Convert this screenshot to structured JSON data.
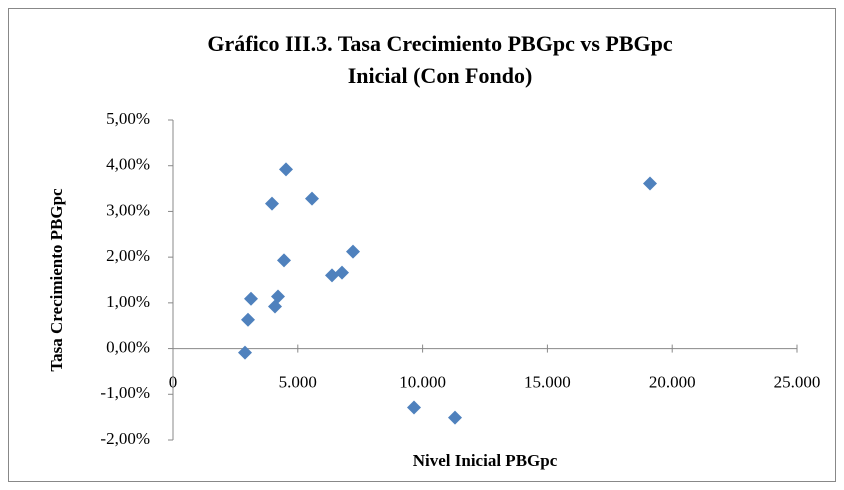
{
  "chart_data": {
    "type": "scatter",
    "title": "Gráfico III.3. Tasa Crecimiento PBGpc vs PBGpc",
    "subtitle": "Inicial (Con Fondo)",
    "x_label": "Nivel Inicial PBGpc",
    "y_label": "Tasa Crecimiento PBGpc",
    "color": "#4f81bd",
    "x": [
      2885,
      3005,
      3125,
      3966,
      4087,
      4207,
      4447,
      4527,
      5569,
      6370,
      6771,
      7212,
      9655,
      11298,
      19111
    ],
    "values": [
      -0.09,
      0.63,
      1.09,
      3.17,
      0.92,
      1.14,
      1.93,
      3.92,
      3.28,
      1.6,
      1.66,
      2.12,
      -1.29,
      -1.51,
      3.61
    ],
    "xlim": [
      0,
      25000
    ],
    "xticks": [
      0,
      {
        "value": 5000,
        "label": "5.000"
      },
      {
        "value": 10000,
        "label": "10.000"
      },
      {
        "value": 15000,
        "label": "15.000"
      },
      {
        "value": 20000,
        "label": "20.000"
      },
      {
        "value": 25000,
        "label": "25.000"
      }
    ],
    "ylim": [
      -2,
      5
    ],
    "yticks": [
      {
        "value": -2,
        "label": "-2,00%"
      },
      {
        "value": -1,
        "label": "-1,00%"
      },
      {
        "value": 0,
        "label": "0,00%"
      },
      {
        "value": 1,
        "label": "1,00%"
      },
      {
        "value": 2,
        "label": "2,00%"
      },
      {
        "value": 3,
        "label": "3,00%"
      },
      {
        "value": 4,
        "label": "4,00%"
      },
      {
        "value": 5,
        "label": "5,00%"
      }
    ],
    "grid": false
  }
}
